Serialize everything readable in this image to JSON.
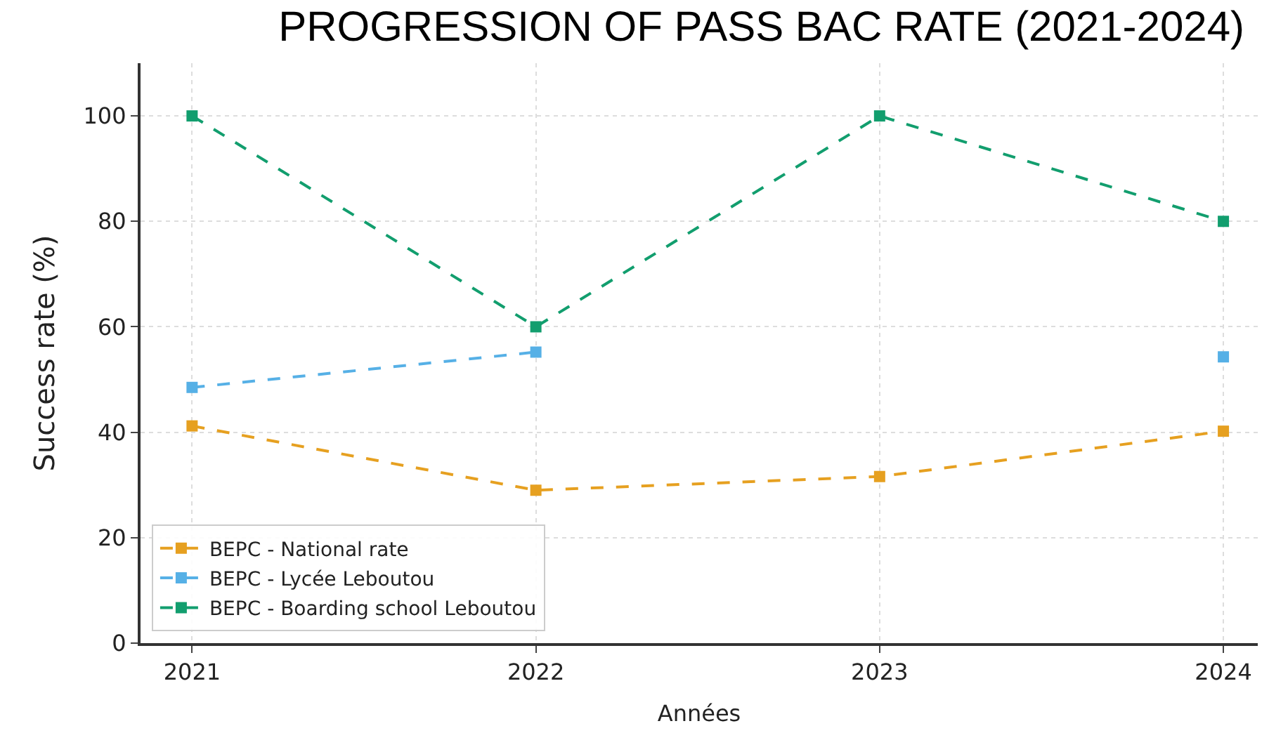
{
  "chart_data": {
    "type": "line",
    "title": "PROGRESSION OF PASS BAC RATE (2021-2024)",
    "xlabel": "Années",
    "ylabel": "Success rate (%)",
    "x": [
      2021,
      2022,
      2023,
      2024
    ],
    "series": [
      {
        "name": "BEPC - National rate",
        "color": "#e6a020",
        "values": [
          41.2,
          29.0,
          31.6,
          40.2
        ]
      },
      {
        "name": "BEPC - Lycée Leboutou",
        "color": "#56b0e6",
        "values": [
          48.5,
          55.2,
          null,
          54.3
        ]
      },
      {
        "name": "BEPC - Boarding school Leboutou",
        "color": "#129e6e",
        "values": [
          100,
          60,
          100,
          80
        ]
      }
    ],
    "xlim": [
      2020.85,
      2024.1
    ],
    "xticks": [
      2021,
      2022,
      2023,
      2024
    ],
    "ylim": [
      0,
      110
    ],
    "yticks": [
      0,
      20,
      40,
      60,
      80,
      100
    ],
    "grid": true,
    "legend": "bottom left",
    "marker": "square",
    "line_style": "dashed"
  }
}
